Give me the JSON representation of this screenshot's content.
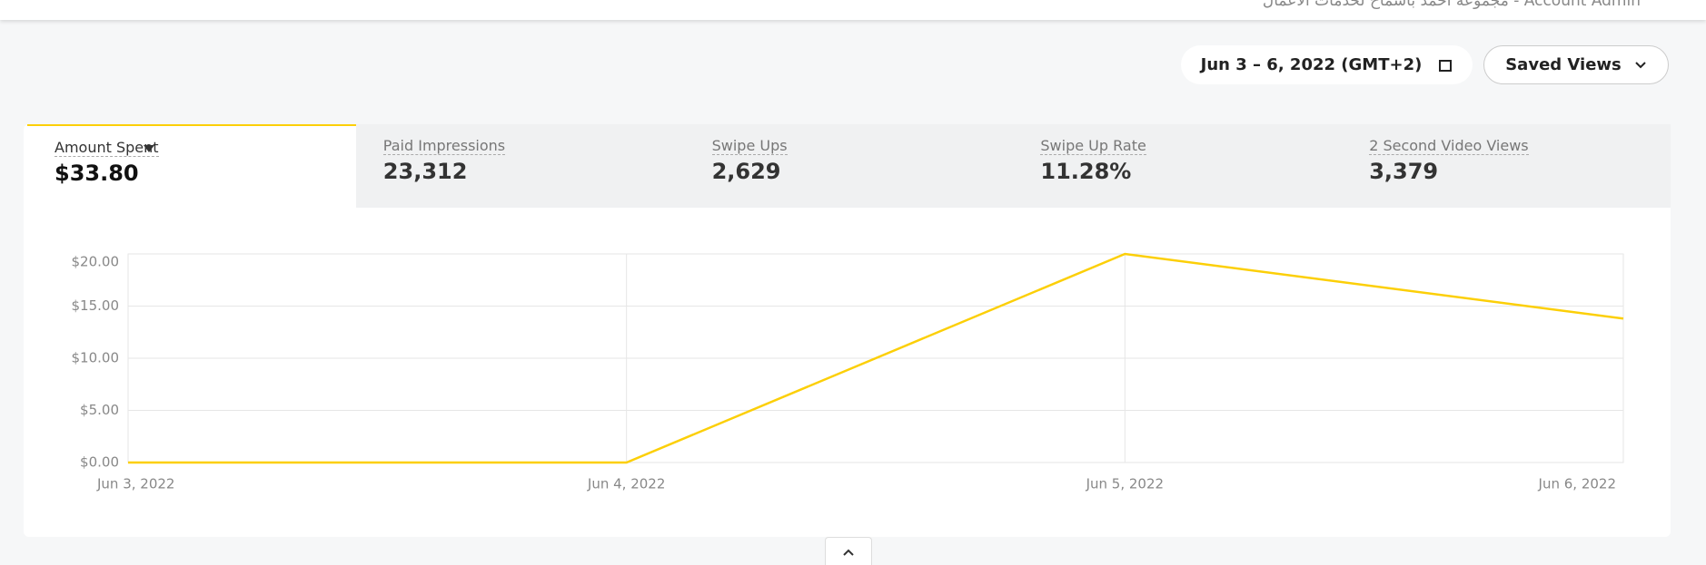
{
  "header": {
    "account": "مجموعة احمد باسماح لخدمات الاعمال - Account Admin"
  },
  "toolbar": {
    "date_range": "Jun 3 – 6, 2022 (GMT+2)",
    "saved_views": "Saved Views"
  },
  "tabs": [
    {
      "label": "Amount Spent",
      "value": "$33.80"
    },
    {
      "label": "Paid Impressions",
      "value": "23,312"
    },
    {
      "label": "Swipe Ups",
      "value": "2,629"
    },
    {
      "label": "Swipe Up Rate",
      "value": "11.28%"
    },
    {
      "label": "2 Second Video Views",
      "value": "3,379"
    }
  ],
  "chart_data": {
    "type": "line",
    "categories": [
      "Jun 3, 2022",
      "Jun 4, 2022",
      "Jun 5, 2022",
      "Jun 6, 2022"
    ],
    "series": [
      {
        "name": "Amount Spent",
        "color": "#fccf07",
        "values": [
          0,
          0,
          20.0,
          13.8
        ]
      }
    ],
    "ylim": [
      0,
      20
    ],
    "yticks": [
      {
        "value": 0,
        "label": "$0.00"
      },
      {
        "value": 5,
        "label": "$5.00"
      },
      {
        "value": 10,
        "label": "$10.00"
      },
      {
        "value": 15,
        "label": "$15.00"
      },
      {
        "value": 20,
        "label": "$20.00"
      }
    ],
    "grid": true
  }
}
